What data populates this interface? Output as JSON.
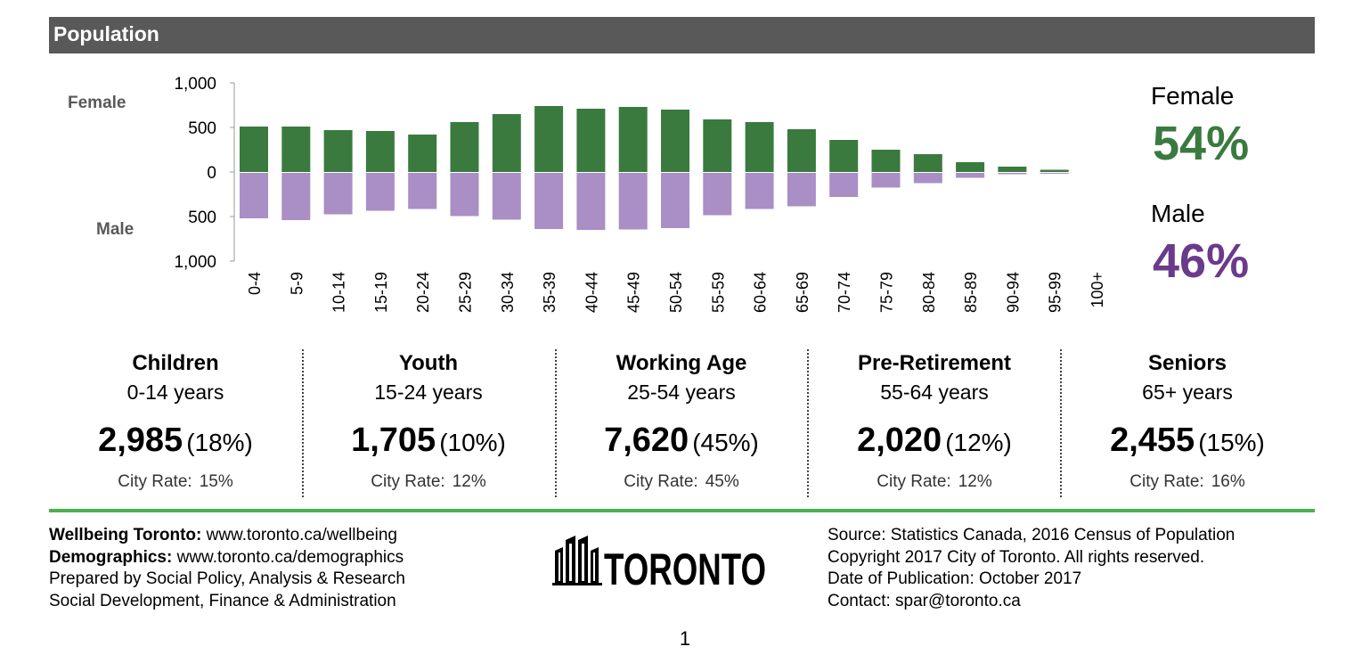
{
  "header": {
    "title": "Population"
  },
  "chart_data": {
    "type": "bar",
    "subtype": "population-pyramid",
    "categories": [
      "0-4",
      "5-9",
      "10-14",
      "15-19",
      "20-24",
      "25-29",
      "30-34",
      "35-39",
      "40-44",
      "45-49",
      "50-54",
      "55-59",
      "60-64",
      "65-69",
      "70-74",
      "75-79",
      "80-84",
      "85-89",
      "90-94",
      "95-99",
      "100+"
    ],
    "series": [
      {
        "name": "Female",
        "color": "#3a7a3f",
        "values": [
          510,
          510,
          470,
          460,
          420,
          560,
          650,
          740,
          710,
          730,
          700,
          590,
          560,
          480,
          360,
          250,
          200,
          110,
          60,
          25,
          0
        ]
      },
      {
        "name": "Male",
        "color": "#a98fc5",
        "values": [
          510,
          530,
          465,
          425,
          405,
          485,
          525,
          630,
          640,
          635,
          620,
          475,
          405,
          375,
          270,
          165,
          115,
          55,
          15,
          10,
          0
        ]
      }
    ],
    "yticks": [
      "1,000",
      "500",
      "0",
      "500",
      "1,000"
    ],
    "ylim": [
      -1000,
      1000
    ],
    "side_labels": {
      "top": "Female",
      "bottom": "Male"
    },
    "grid": false
  },
  "summary": {
    "female": {
      "label": "Female",
      "pct": "54%",
      "color": "#3a7a3f"
    },
    "male": {
      "label": "Male",
      "pct": "46%",
      "color": "#6a3a8c"
    }
  },
  "age_groups": [
    {
      "name": "Children",
      "range": "0-14 years",
      "count": "2,985",
      "share": "(18%)",
      "city_label": "City Rate:",
      "city_rate": "15%"
    },
    {
      "name": "Youth",
      "range": "15-24 years",
      "count": "1,705",
      "share": "(10%)",
      "city_label": "City Rate:",
      "city_rate": "12%"
    },
    {
      "name": "Working Age",
      "range": "25-54 years",
      "count": "7,620",
      "share": "(45%)",
      "city_label": "City Rate:",
      "city_rate": "45%"
    },
    {
      "name": "Pre-Retirement",
      "range": "55-64 years",
      "count": "2,020",
      "share": "(12%)",
      "city_label": "City Rate:",
      "city_rate": "12%"
    },
    {
      "name": "Seniors",
      "range": "65+ years",
      "count": "2,455",
      "share": "(15%)",
      "city_label": "City Rate:",
      "city_rate": "16%"
    }
  ],
  "footer": {
    "wellbeing_label": "Wellbeing Toronto:",
    "wellbeing_url": "www.toronto.ca/wellbeing",
    "demographics_label": "Demographics:",
    "demographics_url": "www.toronto.ca/demographics",
    "prepared_by": "Prepared by Social Policy, Analysis & Research",
    "division": "Social Development, Finance & Administration",
    "source": "Source: Statistics Canada, 2016 Census of Population",
    "copyright": "Copyright 2017 City of Toronto. All rights reserved.",
    "publication": "Date of Publication: October 2017",
    "contact": "Contact: spar@toronto.ca",
    "logo_text": "TORONTO",
    "page_number": "1"
  }
}
